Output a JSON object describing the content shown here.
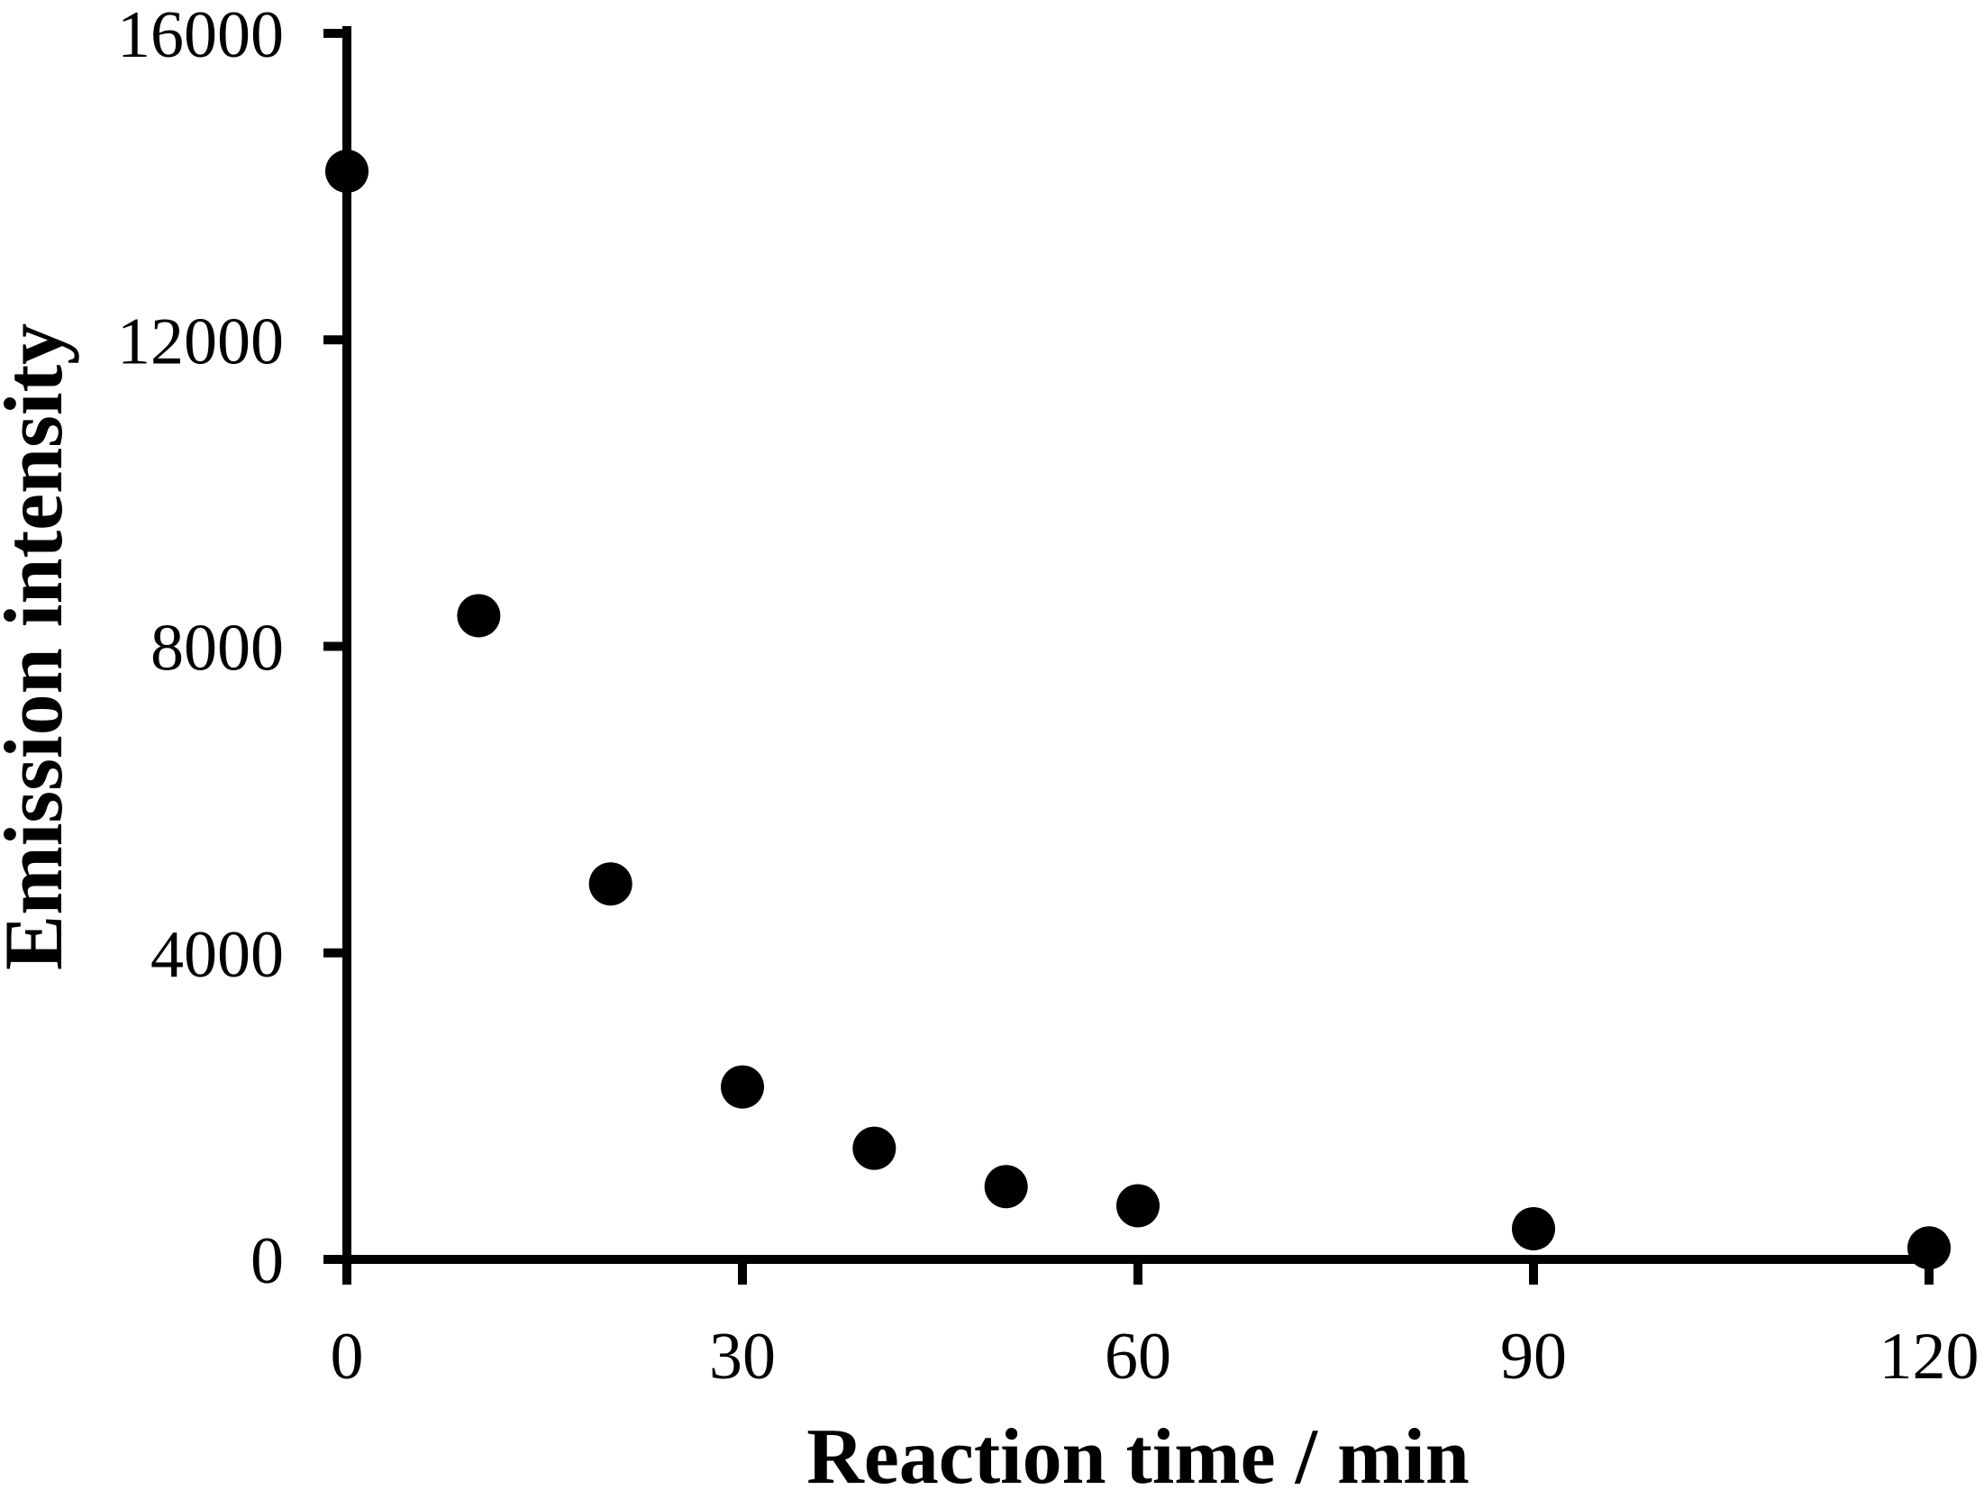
{
  "figure": {
    "background_color": "#ffffff",
    "axis_color": "#000000",
    "marker_color": "#000000"
  },
  "chart_data": {
    "type": "scatter",
    "title": "",
    "xlabel": "Reaction time / min",
    "ylabel": "Emission intensity",
    "x": [
      0,
      10,
      20,
      30,
      40,
      50,
      60,
      90,
      120
    ],
    "y": [
      14200,
      8400,
      4900,
      2250,
      1450,
      950,
      700,
      400,
      150
    ],
    "xlim": [
      0,
      120
    ],
    "ylim": [
      0,
      16000
    ],
    "xticks": [
      0,
      30,
      60,
      90,
      120
    ],
    "yticks": [
      0,
      4000,
      8000,
      12000,
      16000
    ],
    "grid": false,
    "legend": false,
    "marker": "filled-circle",
    "marker_radius_px": 24
  }
}
